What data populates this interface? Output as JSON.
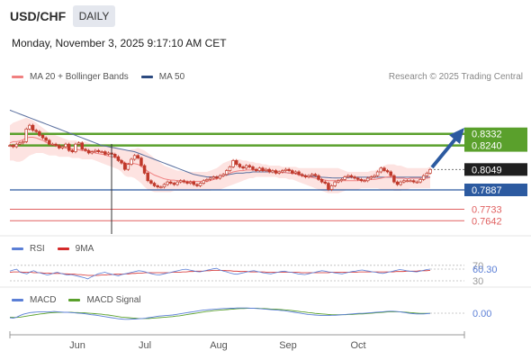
{
  "header": {
    "symbol": "USD/CHF",
    "timeframe": "DAILY",
    "datetime": "Monday, November 3, 2025 9:17:10 AM CET"
  },
  "legend": {
    "ma20_label": "MA 20 + Bollinger Bands",
    "ma50_label": "MA 50",
    "credit": "Research © 2025 Trading Central",
    "rsi_label": "RSI",
    "rsi_ma_label": "9MA",
    "macd_label": "MACD",
    "macd_signal_label": "MACD Signal"
  },
  "colors": {
    "candle": "#c0392b",
    "bollinger_fill": "#fde3e1",
    "ma20": "#f08080",
    "ma50": "#5a6f9e",
    "resistance": "#5aa02c",
    "support": "#2c5aa0",
    "target": "#e06060",
    "arrow": "#2c5aa0",
    "rsi": "#5b7fd6",
    "rsi_ma": "#d42a2a",
    "macd": "#5b7fd6",
    "macd_signal": "#5aa02c"
  },
  "chart_data": [
    {
      "type": "candlestick",
      "x_ticks": [
        "Jun",
        "Jul",
        "Aug",
        "Sep",
        "Oct"
      ],
      "current_price": 0.8049,
      "levels": [
        {
          "label": "0.8332",
          "value": 0.8332,
          "kind": "resistance"
        },
        {
          "label": "0.8240",
          "value": 0.824,
          "kind": "resistance"
        },
        {
          "label": "0.8049",
          "value": 0.8049,
          "kind": "current"
        },
        {
          "label": "0.7887",
          "value": 0.7887,
          "kind": "support"
        },
        {
          "label": "0.7733",
          "value": 0.7733,
          "kind": "target"
        },
        {
          "label": "0.7642",
          "value": 0.7642,
          "kind": "target"
        }
      ],
      "close": [
        0.824,
        0.823,
        0.825,
        0.826,
        0.827,
        0.837,
        0.84,
        0.836,
        0.835,
        0.832,
        0.83,
        0.828,
        0.825,
        0.825,
        0.824,
        0.822,
        0.823,
        0.825,
        0.82,
        0.819,
        0.825,
        0.826,
        0.821,
        0.82,
        0.818,
        0.819,
        0.82,
        0.819,
        0.819,
        0.817,
        0.818,
        0.817,
        0.815,
        0.812,
        0.81,
        0.805,
        0.809,
        0.813,
        0.816,
        0.814,
        0.808,
        0.802,
        0.796,
        0.794,
        0.792,
        0.791,
        0.791,
        0.793,
        0.795,
        0.794,
        0.793,
        0.795,
        0.796,
        0.795,
        0.794,
        0.795,
        0.793,
        0.792,
        0.794,
        0.796,
        0.797,
        0.798,
        0.799,
        0.798,
        0.8,
        0.801,
        0.804,
        0.807,
        0.812,
        0.809,
        0.807,
        0.806,
        0.808,
        0.807,
        0.805,
        0.804,
        0.806,
        0.804,
        0.805,
        0.803,
        0.804,
        0.802,
        0.803,
        0.804,
        0.805,
        0.804,
        0.802,
        0.803,
        0.801,
        0.8,
        0.799,
        0.8,
        0.801,
        0.8,
        0.797,
        0.795,
        0.794,
        0.789,
        0.792,
        0.795,
        0.796,
        0.797,
        0.799,
        0.8,
        0.799,
        0.798,
        0.797,
        0.796,
        0.796,
        0.798,
        0.799,
        0.8,
        0.803,
        0.806,
        0.804,
        0.803,
        0.8,
        0.795,
        0.793,
        0.795,
        0.796,
        0.796,
        0.796,
        0.795,
        0.795,
        0.797,
        0.8,
        0.802,
        0.8049
      ],
      "bollinger_upper": [
        0.84,
        0.842,
        0.843,
        0.844,
        0.845,
        0.846,
        0.845,
        0.844,
        0.842,
        0.84,
        0.838,
        0.836,
        0.834,
        0.833,
        0.832,
        0.831,
        0.83,
        0.829,
        0.828,
        0.828,
        0.828,
        0.827,
        0.827,
        0.827,
        0.826,
        0.825,
        0.824,
        0.824,
        0.824,
        0.824,
        0.823,
        0.823,
        0.823,
        0.822,
        0.821,
        0.82,
        0.82,
        0.821,
        0.821,
        0.822,
        0.821,
        0.82,
        0.818,
        0.816,
        0.814,
        0.812,
        0.81,
        0.808,
        0.807,
        0.806,
        0.805,
        0.804,
        0.804,
        0.803,
        0.803,
        0.803,
        0.803,
        0.803,
        0.803,
        0.803,
        0.803,
        0.804,
        0.805,
        0.806,
        0.808,
        0.81,
        0.811,
        0.812,
        0.813,
        0.813,
        0.813,
        0.812,
        0.812,
        0.811,
        0.811,
        0.81,
        0.81,
        0.809,
        0.809,
        0.808,
        0.808,
        0.808,
        0.808,
        0.807,
        0.807,
        0.807,
        0.807,
        0.807,
        0.806,
        0.806,
        0.806,
        0.806,
        0.806,
        0.806,
        0.806,
        0.806,
        0.806,
        0.806,
        0.806,
        0.806,
        0.806,
        0.805,
        0.804,
        0.803,
        0.803,
        0.803,
        0.803,
        0.803,
        0.803,
        0.803,
        0.804,
        0.804,
        0.805,
        0.807,
        0.808,
        0.809,
        0.809,
        0.809,
        0.808,
        0.808,
        0.807,
        0.806,
        0.806,
        0.806,
        0.806,
        0.806,
        0.806,
        0.806,
        0.807
      ],
      "bollinger_lower": [
        0.812,
        0.812,
        0.811,
        0.811,
        0.812,
        0.814,
        0.816,
        0.817,
        0.818,
        0.818,
        0.818,
        0.817,
        0.816,
        0.816,
        0.816,
        0.815,
        0.815,
        0.815,
        0.815,
        0.814,
        0.814,
        0.814,
        0.813,
        0.813,
        0.813,
        0.813,
        0.812,
        0.811,
        0.81,
        0.809,
        0.808,
        0.807,
        0.806,
        0.805,
        0.803,
        0.8,
        0.799,
        0.799,
        0.798,
        0.796,
        0.794,
        0.791,
        0.789,
        0.788,
        0.787,
        0.787,
        0.787,
        0.787,
        0.787,
        0.787,
        0.788,
        0.788,
        0.788,
        0.788,
        0.788,
        0.788,
        0.788,
        0.788,
        0.788,
        0.788,
        0.788,
        0.788,
        0.789,
        0.789,
        0.789,
        0.79,
        0.791,
        0.792,
        0.793,
        0.794,
        0.795,
        0.796,
        0.797,
        0.798,
        0.798,
        0.799,
        0.799,
        0.799,
        0.799,
        0.799,
        0.799,
        0.799,
        0.798,
        0.798,
        0.798,
        0.797,
        0.797,
        0.796,
        0.795,
        0.794,
        0.793,
        0.792,
        0.791,
        0.79,
        0.789,
        0.788,
        0.787,
        0.786,
        0.786,
        0.786,
        0.786,
        0.787,
        0.788,
        0.789,
        0.789,
        0.789,
        0.789,
        0.79,
        0.79,
        0.79,
        0.79,
        0.79,
        0.79,
        0.789,
        0.789,
        0.789,
        0.789,
        0.788,
        0.788,
        0.788,
        0.789,
        0.789,
        0.79,
        0.79,
        0.79,
        0.79,
        0.79,
        0.79,
        0.79
      ],
      "ma50": [
        0.852,
        0.851,
        0.85,
        0.849,
        0.848,
        0.847,
        0.846,
        0.845,
        0.844,
        0.843,
        0.842,
        0.841,
        0.84,
        0.839,
        0.838,
        0.837,
        0.836,
        0.835,
        0.834,
        0.833,
        0.832,
        0.831,
        0.83,
        0.829,
        0.828,
        0.827,
        0.826,
        0.825,
        0.824,
        0.8235,
        0.823,
        0.8225,
        0.822,
        0.8215,
        0.821,
        0.8205,
        0.82,
        0.8195,
        0.819,
        0.818,
        0.817,
        0.816,
        0.815,
        0.814,
        0.813,
        0.812,
        0.811,
        0.81,
        0.809,
        0.808,
        0.807,
        0.806,
        0.805,
        0.804,
        0.803,
        0.802,
        0.801,
        0.8005,
        0.8,
        0.7995,
        0.799,
        0.799,
        0.799,
        0.799,
        0.7995,
        0.8,
        0.8005,
        0.801,
        0.8015,
        0.802,
        0.802,
        0.802,
        0.8025,
        0.8025,
        0.803,
        0.803,
        0.803,
        0.803,
        0.803,
        0.803,
        0.803,
        0.803,
        0.803,
        0.803,
        0.8025,
        0.802,
        0.802,
        0.8015,
        0.801,
        0.8005,
        0.8,
        0.7998,
        0.7995,
        0.7992,
        0.799,
        0.7988,
        0.7986,
        0.7984,
        0.7983,
        0.7982,
        0.7982,
        0.7983,
        0.7984,
        0.7985,
        0.7986,
        0.7987,
        0.7988,
        0.7988,
        0.7988,
        0.7988,
        0.7988,
        0.7988,
        0.7988,
        0.7988,
        0.7988,
        0.7988,
        0.7988,
        0.7988,
        0.7988,
        0.7988,
        0.7988,
        0.7988,
        0.7988,
        0.7988,
        0.7988,
        0.7988,
        0.7988,
        0.7988,
        0.7988
      ],
      "xlabel": "",
      "ylabel": ""
    },
    {
      "type": "line",
      "name": "RSI",
      "tick_labels": [
        "70",
        "60.30",
        "30"
      ],
      "current": 60.3,
      "values": [
        55,
        58,
        60,
        52,
        50,
        48,
        53,
        56,
        52,
        50,
        48,
        45,
        47,
        50,
        52,
        49,
        47,
        45,
        46,
        44,
        42,
        40,
        38,
        35,
        40,
        44,
        48,
        50,
        52,
        49,
        47,
        45,
        43,
        46,
        48,
        50,
        52,
        54,
        56,
        55,
        53,
        50,
        48,
        46,
        45,
        47,
        49,
        51,
        53,
        55,
        57,
        59,
        60,
        58,
        56,
        54,
        53,
        55,
        57,
        59,
        61,
        62,
        58,
        55,
        53,
        50,
        48,
        47,
        49,
        51,
        53,
        55,
        56,
        54,
        52,
        50,
        49,
        48,
        50,
        52,
        54,
        55,
        53,
        52,
        50,
        48,
        47,
        46,
        48,
        50,
        52,
        54,
        56,
        55,
        53,
        52,
        50,
        49,
        48,
        50,
        52,
        54,
        55,
        57,
        58,
        56,
        55,
        53,
        52,
        50,
        49,
        51,
        53,
        55,
        57,
        59,
        58,
        56,
        55,
        54,
        53,
        55,
        57,
        59,
        60.3
      ],
      "ma9": [
        52,
        53,
        53,
        53,
        52,
        52,
        52,
        51,
        51,
        51,
        50,
        50,
        49,
        49,
        49,
        49,
        48,
        48,
        47,
        47,
        46,
        46,
        45,
        44,
        44,
        44,
        44,
        45,
        45,
        46,
        46,
        47,
        47,
        47,
        48,
        48,
        49,
        49,
        50,
        50,
        51,
        51,
        51,
        51,
        51,
        51,
        51,
        51,
        52,
        52,
        52,
        53,
        53,
        54,
        54,
        55,
        55,
        55,
        56,
        56,
        57,
        57,
        57,
        57,
        56,
        56,
        55,
        55,
        54,
        54,
        54,
        53,
        53,
        53,
        53,
        53,
        52,
        52,
        52,
        52,
        52,
        52,
        52,
        52,
        52,
        52,
        51,
        51,
        51,
        51,
        51,
        51,
        51,
        51,
        51,
        52,
        52,
        52,
        52,
        52,
        52,
        52,
        52,
        53,
        53,
        53,
        53,
        53,
        53,
        53,
        53,
        53,
        53,
        53,
        54,
        54,
        54,
        55,
        55,
        55,
        55,
        56,
        56,
        56,
        57
      ]
    },
    {
      "type": "line",
      "name": "MACD",
      "tick_labels": [
        "0.00"
      ],
      "current": 0.0,
      "macd": [
        -0.001,
        -0.0012,
        -0.0008,
        -0.0002,
        0.0003,
        0.0006,
        0.0009,
        0.001,
        0.0011,
        0.0012,
        0.0012,
        0.0011,
        0.0012,
        0.0013,
        0.0012,
        0.0011,
        0.001,
        0.001,
        0.0009,
        0.0008,
        0.0007,
        0.0006,
        0.0005,
        0.0003,
        0.0001,
        0.0,
        -0.0002,
        -0.0004,
        -0.0006,
        -0.0008,
        -0.001,
        -0.0012,
        -0.0014,
        -0.0015,
        -0.0016,
        -0.0016,
        -0.0015,
        -0.0015,
        -0.0014,
        -0.0013,
        -0.0012,
        -0.001,
        -0.0008,
        -0.0006,
        -0.0004,
        -0.0003,
        -0.0002,
        -0.0001,
        0.0,
        0.0002,
        0.0004,
        0.0006,
        0.0008,
        0.001,
        0.0012,
        0.0014,
        0.0016,
        0.0018,
        0.0019,
        0.002,
        0.0021,
        0.0022,
        0.0023,
        0.0024,
        0.0024,
        0.0025,
        0.0025,
        0.0026,
        0.0026,
        0.0026,
        0.0026,
        0.0025,
        0.0025,
        0.0024,
        0.0023,
        0.0022,
        0.0021,
        0.002,
        0.0019,
        0.0018,
        0.0017,
        0.0016,
        0.0014,
        0.0012,
        0.001,
        0.0008,
        0.0006,
        0.0004,
        0.0002,
        0.0001,
        0.0,
        -0.0001,
        -0.0002,
        -0.0002,
        -0.0002,
        -0.0001,
        -0.0001,
        0.0,
        0.0001,
        0.0002,
        0.0003,
        0.0004,
        0.0005,
        0.0006,
        0.0006,
        0.0007,
        0.0008,
        0.0009,
        0.001,
        0.0011,
        0.0012,
        0.0013,
        0.0014,
        0.0014,
        0.0013,
        0.0012,
        0.001,
        0.0008,
        0.0006,
        0.0005,
        0.0004,
        0.0004,
        0.0004,
        0.0005,
        0.0006
      ],
      "signal": [
        -0.0008,
        -0.0009,
        -0.0009,
        -0.0008,
        -0.0006,
        -0.0004,
        -0.0002,
        0.0,
        0.0002,
        0.0004,
        0.0005,
        0.0007,
        0.0008,
        0.0009,
        0.001,
        0.001,
        0.001,
        0.001,
        0.001,
        0.0009,
        0.0009,
        0.0008,
        0.0008,
        0.0007,
        0.0006,
        0.0005,
        0.0004,
        0.0003,
        0.0001,
        0.0,
        -0.0002,
        -0.0004,
        -0.0006,
        -0.0008,
        -0.0009,
        -0.001,
        -0.0011,
        -0.0012,
        -0.0013,
        -0.0013,
        -0.0013,
        -0.0013,
        -0.0012,
        -0.0011,
        -0.001,
        -0.0009,
        -0.0008,
        -0.0007,
        -0.0006,
        -0.0004,
        -0.0003,
        -0.0001,
        0.0001,
        0.0003,
        0.0005,
        0.0007,
        0.0009,
        0.0011,
        0.0013,
        0.0014,
        0.0016,
        0.0017,
        0.0018,
        0.0019,
        0.002,
        0.0021,
        0.0022,
        0.0023,
        0.0024,
        0.0024,
        0.0025,
        0.0025,
        0.0025,
        0.0025,
        0.0024,
        0.0024,
        0.0023,
        0.0022,
        0.0022,
        0.0021,
        0.002,
        0.0019,
        0.0018,
        0.0017,
        0.0015,
        0.0014,
        0.0012,
        0.0011,
        0.0009,
        0.0008,
        0.0006,
        0.0005,
        0.0004,
        0.0003,
        0.0002,
        0.0001,
        0.0001,
        0.0001,
        0.0001,
        0.0001,
        0.0002,
        0.0002,
        0.0003,
        0.0004,
        0.0004,
        0.0005,
        0.0006,
        0.0007,
        0.0008,
        0.0009,
        0.001,
        0.0011,
        0.0012,
        0.0012,
        0.0012,
        0.0012,
        0.0011,
        0.001,
        0.0009,
        0.0008,
        0.0007,
        0.0006,
        0.0006,
        0.0006,
        0.0006
      ]
    }
  ]
}
